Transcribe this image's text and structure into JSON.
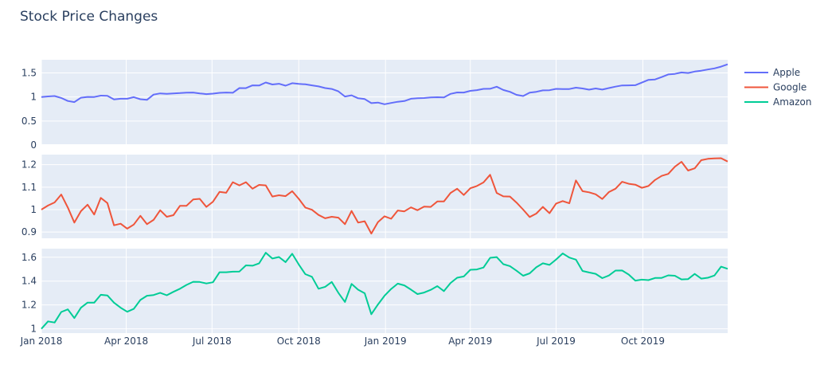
{
  "chart_data": {
    "type": "line",
    "title": "Stock Price Changes",
    "layout": "3 vertically stacked subplots sharing the x axis",
    "grid": true,
    "legend_placement": "top-right outside",
    "background_color": "#e5ecf6",
    "x_tick_labels": [
      "Jan 2018",
      "Apr 2018",
      "Jul 2018",
      "Oct 2018",
      "Jan 2019",
      "Apr 2019",
      "Jul 2019",
      "Oct 2019"
    ],
    "x_tick_dates": [
      "2018-01-01",
      "2018-04-01",
      "2018-07-01",
      "2018-10-01",
      "2019-01-01",
      "2019-04-01",
      "2019-07-01",
      "2019-10-01"
    ],
    "x": [
      "2018-01-01",
      "2018-01-08",
      "2018-01-15",
      "2018-01-22",
      "2018-01-29",
      "2018-02-05",
      "2018-02-12",
      "2018-02-19",
      "2018-02-26",
      "2018-03-05",
      "2018-03-12",
      "2018-03-19",
      "2018-03-26",
      "2018-04-02",
      "2018-04-09",
      "2018-04-16",
      "2018-04-23",
      "2018-04-30",
      "2018-05-07",
      "2018-05-14",
      "2018-05-21",
      "2018-05-28",
      "2018-06-04",
      "2018-06-11",
      "2018-06-18",
      "2018-06-25",
      "2018-07-02",
      "2018-07-09",
      "2018-07-16",
      "2018-07-23",
      "2018-07-30",
      "2018-08-06",
      "2018-08-13",
      "2018-08-20",
      "2018-08-27",
      "2018-09-03",
      "2018-09-10",
      "2018-09-17",
      "2018-09-24",
      "2018-10-01",
      "2018-10-08",
      "2018-10-15",
      "2018-10-22",
      "2018-10-29",
      "2018-11-05",
      "2018-11-12",
      "2018-11-19",
      "2018-11-26",
      "2018-12-03",
      "2018-12-10",
      "2018-12-17",
      "2018-12-24",
      "2018-12-31",
      "2019-01-07",
      "2019-01-14",
      "2019-01-21",
      "2019-01-28",
      "2019-02-04",
      "2019-02-11",
      "2019-02-18",
      "2019-02-25",
      "2019-03-04",
      "2019-03-11",
      "2019-03-18",
      "2019-03-25",
      "2019-04-01",
      "2019-04-08",
      "2019-04-15",
      "2019-04-22",
      "2019-04-29",
      "2019-05-06",
      "2019-05-13",
      "2019-05-20",
      "2019-05-27",
      "2019-06-03",
      "2019-06-10",
      "2019-06-17",
      "2019-06-24",
      "2019-07-01",
      "2019-07-08",
      "2019-07-15",
      "2019-07-22",
      "2019-07-29",
      "2019-08-05",
      "2019-08-12",
      "2019-08-19",
      "2019-08-26",
      "2019-09-02",
      "2019-09-09",
      "2019-09-16",
      "2019-09-23",
      "2019-09-30",
      "2019-10-07",
      "2019-10-14",
      "2019-10-21",
      "2019-10-28",
      "2019-11-04",
      "2019-11-11",
      "2019-11-18",
      "2019-11-25",
      "2019-12-02",
      "2019-12-09",
      "2019-12-16",
      "2019-12-23",
      "2019-12-30"
    ],
    "x_range": [
      "2018-01-01",
      "2019-12-30"
    ],
    "series": [
      {
        "name": "Apple",
        "color": "#636efa",
        "ylim": [
          0,
          1.774
        ],
        "y_ticks": [
          0,
          0.5,
          1,
          1.5
        ],
        "y_tick_labels": [
          "0",
          "0.5",
          "1",
          "1.5"
        ],
        "values": [
          1.0,
          1.012,
          1.02,
          0.98,
          0.917,
          0.893,
          0.985,
          1.002,
          1.0,
          1.028,
          1.023,
          0.948,
          0.963,
          0.964,
          0.997,
          0.954,
          0.94,
          1.049,
          1.075,
          1.064,
          1.075,
          1.081,
          1.091,
          1.093,
          1.075,
          1.06,
          1.07,
          1.086,
          1.092,
          1.087,
          1.185,
          1.184,
          1.242,
          1.239,
          1.301,
          1.26,
          1.275,
          1.235,
          1.286,
          1.273,
          1.264,
          1.241,
          1.22,
          1.186,
          1.167,
          1.117,
          1.009,
          1.034,
          0.974,
          0.957,
          0.872,
          0.884,
          0.849,
          0.876,
          0.901,
          0.916,
          0.963,
          0.973,
          0.979,
          0.99,
          0.994,
          0.991,
          1.064,
          1.094,
          1.093,
          1.127,
          1.142,
          1.169,
          1.17,
          1.213,
          1.145,
          1.107,
          1.044,
          1.019,
          1.091,
          1.107,
          1.138,
          1.141,
          1.169,
          1.164,
          1.165,
          1.194,
          1.177,
          1.152,
          1.177,
          1.154,
          1.186,
          1.216,
          1.24,
          1.241,
          1.245,
          1.3,
          1.356,
          1.365,
          1.414,
          1.469,
          1.48,
          1.51,
          1.499,
          1.529,
          1.547,
          1.571,
          1.595,
          1.632,
          1.679
        ]
      },
      {
        "name": "Google",
        "color": "#ef553b",
        "ylim": [
          0.872,
          1.245
        ],
        "y_ticks": [
          0.9,
          1,
          1.1,
          1.2
        ],
        "y_tick_labels": [
          "0.9",
          "1",
          "1.1",
          "1.2"
        ],
        "values": [
          1.0,
          1.018,
          1.032,
          1.067,
          1.009,
          0.942,
          0.993,
          1.022,
          0.978,
          1.052,
          1.029,
          0.93,
          0.937,
          0.915,
          0.933,
          0.972,
          0.935,
          0.954,
          0.997,
          0.968,
          0.975,
          1.017,
          1.017,
          1.045,
          1.048,
          1.012,
          1.035,
          1.079,
          1.075,
          1.122,
          1.108,
          1.122,
          1.093,
          1.11,
          1.108,
          1.058,
          1.064,
          1.06,
          1.082,
          1.048,
          1.009,
          0.999,
          0.976,
          0.961,
          0.968,
          0.964,
          0.935,
          0.994,
          0.942,
          0.948,
          0.893,
          0.944,
          0.97,
          0.959,
          0.996,
          0.992,
          1.01,
          0.997,
          1.013,
          1.012,
          1.036,
          1.036,
          1.074,
          1.093,
          1.065,
          1.095,
          1.105,
          1.121,
          1.155,
          1.074,
          1.059,
          1.058,
          1.031,
          1.0,
          0.967,
          0.982,
          1.012,
          0.984,
          1.027,
          1.038,
          1.028,
          1.13,
          1.082,
          1.077,
          1.068,
          1.047,
          1.078,
          1.093,
          1.124,
          1.115,
          1.111,
          1.097,
          1.105,
          1.132,
          1.15,
          1.159,
          1.191,
          1.213,
          1.174,
          1.184,
          1.22,
          1.226,
          1.228,
          1.229,
          1.214
        ]
      },
      {
        "name": "Amazon",
        "color": "#00cc96",
        "ylim": [
          0.964,
          1.672
        ],
        "y_ticks": [
          1,
          1.2,
          1.4,
          1.6
        ],
        "y_tick_labels": [
          "1",
          "1.2",
          "1.4",
          "1.6"
        ],
        "values": [
          1.0,
          1.062,
          1.053,
          1.141,
          1.163,
          1.09,
          1.177,
          1.22,
          1.219,
          1.285,
          1.28,
          1.219,
          1.177,
          1.143,
          1.167,
          1.242,
          1.277,
          1.283,
          1.302,
          1.281,
          1.31,
          1.336,
          1.368,
          1.394,
          1.393,
          1.38,
          1.39,
          1.474,
          1.474,
          1.479,
          1.48,
          1.532,
          1.529,
          1.549,
          1.638,
          1.589,
          1.602,
          1.559,
          1.629,
          1.539,
          1.458,
          1.436,
          1.336,
          1.352,
          1.393,
          1.302,
          1.225,
          1.376,
          1.328,
          1.298,
          1.122,
          1.204,
          1.277,
          1.334,
          1.379,
          1.364,
          1.329,
          1.291,
          1.304,
          1.327,
          1.358,
          1.316,
          1.384,
          1.428,
          1.439,
          1.495,
          1.498,
          1.514,
          1.595,
          1.601,
          1.542,
          1.526,
          1.487,
          1.445,
          1.465,
          1.516,
          1.549,
          1.536,
          1.581,
          1.632,
          1.597,
          1.58,
          1.485,
          1.472,
          1.461,
          1.425,
          1.447,
          1.488,
          1.489,
          1.455,
          1.404,
          1.412,
          1.408,
          1.426,
          1.427,
          1.448,
          1.445,
          1.414,
          1.417,
          1.46,
          1.421,
          1.428,
          1.447,
          1.521,
          1.503
        ]
      }
    ]
  }
}
